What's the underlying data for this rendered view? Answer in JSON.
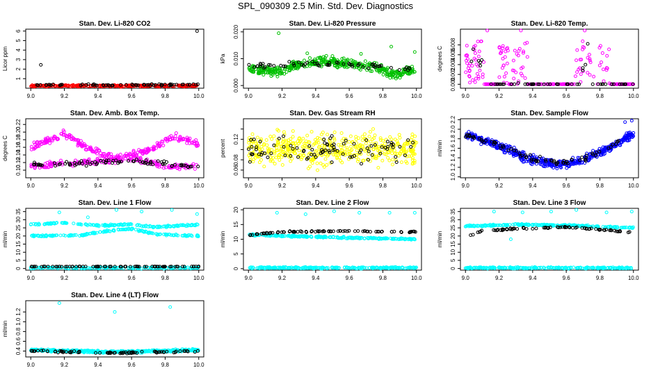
{
  "title": "SPL_090309  2.5 Min. Std. Dev. Diagnostics",
  "chart_data": [
    {
      "type": "scatter",
      "title": "Stan. Dev. Li-820 CO2",
      "ylabel": "Licor ppm",
      "xlim": [
        8.97,
        10.03
      ],
      "ylim": [
        0,
        6.2
      ],
      "xticks": [
        9.0,
        9.2,
        9.4,
        9.6,
        9.8,
        10.0
      ],
      "xtick_labels": [
        "9.0",
        "9.2",
        "9.4",
        "9.6",
        "9.8",
        "10.0"
      ],
      "yticks": [
        1,
        2,
        3,
        4,
        5,
        6
      ],
      "ytick_labels": [
        "1",
        "2",
        "3",
        "4",
        "5",
        "6"
      ],
      "color": "#ff0000",
      "black_overlay": true,
      "primary": {
        "kind": "band",
        "anchors": [
          [
            9.0,
            0.25
          ],
          [
            10.0,
            0.25
          ]
        ],
        "spread": 0.12,
        "n": 300
      },
      "black": {
        "kind": "band",
        "anchors": [
          [
            9.0,
            0.35
          ],
          [
            10.0,
            0.35
          ]
        ],
        "spread": 0.12,
        "n": 70
      },
      "outliers": [
        [
          9.06,
          2.45
        ],
        [
          9.99,
          6.0
        ]
      ],
      "outliers_black": true
    },
    {
      "type": "scatter",
      "title": "Stan. Dev. Li-820 Pressure",
      "ylabel": "kPa",
      "xlim": [
        8.97,
        10.03
      ],
      "ylim": [
        -0.001,
        0.021
      ],
      "xticks": [
        9.0,
        9.2,
        9.4,
        9.6,
        9.8,
        10.0
      ],
      "xtick_labels": [
        "9.0",
        "9.2",
        "9.4",
        "9.6",
        "9.8",
        "10.0"
      ],
      "yticks": [
        0.0,
        0.01,
        0.02
      ],
      "ytick_labels": [
        "0.000",
        "0.010",
        "0.020"
      ],
      "color": "#00c000",
      "black_overlay": true,
      "primary": {
        "kind": "band",
        "anchors": [
          [
            9.0,
            0.006
          ],
          [
            9.2,
            0.005
          ],
          [
            9.3,
            0.008
          ],
          [
            9.45,
            0.009
          ],
          [
            9.6,
            0.008
          ],
          [
            9.75,
            0.007
          ],
          [
            9.85,
            0.004
          ],
          [
            10.0,
            0.006
          ]
        ],
        "spread": 0.0025,
        "n": 420
      },
      "black": {
        "kind": "band",
        "anchors": [
          [
            9.0,
            0.007
          ],
          [
            9.3,
            0.008
          ],
          [
            9.6,
            0.008
          ],
          [
            10.0,
            0.006
          ]
        ],
        "spread": 0.0015,
        "n": 60
      },
      "outliers": [
        [
          9.18,
          0.0195
        ],
        [
          9.35,
          0.012
        ],
        [
          9.5,
          0.011
        ],
        [
          9.67,
          0.0118
        ],
        [
          9.85,
          0.0145
        ],
        [
          9.99,
          0.0125
        ]
      ],
      "outliers_black": false
    },
    {
      "type": "scatter",
      "title": "Stan. Dev. Li-820 Temp.",
      "ylabel": "degrees C",
      "xlim": [
        8.97,
        10.03
      ],
      "ylim": [
        -0.0008,
        0.0112
      ],
      "xticks": [
        9.0,
        9.2,
        9.4,
        9.6,
        9.8,
        10.0
      ],
      "xtick_labels": [
        "9.0",
        "9.2",
        "9.4",
        "9.6",
        "9.8",
        "10.0"
      ],
      "yticks": [
        0.0,
        0.002,
        0.004,
        0.006,
        0.008
      ],
      "ytick_labels": [
        "0.000",
        "0.002",
        "0.004",
        "0.006",
        "0.008"
      ],
      "color": "#ff00ff",
      "black_overlay": true,
      "primary": {
        "kind": "clusters",
        "floor": 0.0,
        "segments": [
          [
            9.0,
            9.11,
            0.008
          ],
          [
            9.2,
            9.26,
            0.007
          ],
          [
            9.28,
            9.37,
            0.008
          ],
          [
            9.65,
            9.77,
            0.008
          ],
          [
            9.79,
            9.86,
            0.007
          ]
        ],
        "n": 260
      },
      "black": {
        "kind": "clusters",
        "floor": 0.0,
        "segments": [
          [
            9.02,
            9.1,
            0.007
          ],
          [
            9.3,
            9.34,
            0.0085
          ],
          [
            9.69,
            9.75,
            0.0085
          ]
        ],
        "n": 60
      },
      "outliers": [
        [
          9.13,
          0.0112
        ],
        [
          9.33,
          0.0112
        ],
        [
          9.71,
          0.0112
        ]
      ],
      "outliers_black": false
    },
    {
      "type": "scatter",
      "title": "Stan. Dev. Amb. Box Temp.",
      "ylabel": "degrees C",
      "xlim": [
        8.97,
        10.03
      ],
      "ylim": [
        0.08,
        0.235
      ],
      "xticks": [
        9.0,
        9.2,
        9.4,
        9.6,
        9.8,
        10.0
      ],
      "xtick_labels": [
        "9.0",
        "9.2",
        "9.4",
        "9.6",
        "9.8",
        "10.0"
      ],
      "yticks": [
        0.1,
        0.12,
        0.14,
        0.16,
        0.18,
        0.2,
        0.22
      ],
      "ytick_labels": [
        "0.10",
        "0.12",
        "0.14",
        "0.16",
        "0.18",
        "0.20",
        "0.22"
      ],
      "color": "#ff00ff",
      "black_overlay": true,
      "primary": {
        "kind": "twoband",
        "anchorsA": [
          [
            9.0,
            0.16
          ],
          [
            9.2,
            0.195
          ],
          [
            9.35,
            0.155
          ],
          [
            9.5,
            0.13
          ],
          [
            9.7,
            0.15
          ],
          [
            9.85,
            0.19
          ],
          [
            10.0,
            0.17
          ]
        ],
        "anchorsB": [
          [
            9.0,
            0.11
          ],
          [
            9.3,
            0.12
          ],
          [
            9.6,
            0.13
          ],
          [
            9.8,
            0.11
          ],
          [
            10.0,
            0.11
          ]
        ],
        "spread": 0.012,
        "n": 460
      },
      "black": {
        "kind": "band",
        "anchors": [
          [
            9.0,
            0.115
          ],
          [
            9.4,
            0.12
          ],
          [
            9.6,
            0.125
          ],
          [
            10.0,
            0.11
          ]
        ],
        "spread": 0.01,
        "n": 80
      },
      "outliers": [],
      "outliers_black": false
    },
    {
      "type": "scatter",
      "title": "Stan. Dev. Gas Stream RH",
      "ylabel": "percent",
      "xlim": [
        8.97,
        10.03
      ],
      "ylim": [
        0.045,
        0.16
      ],
      "xticks": [
        9.0,
        9.2,
        9.4,
        9.6,
        9.8,
        10.0
      ],
      "xtick_labels": [
        "9.0",
        "9.2",
        "9.4",
        "9.6",
        "9.8",
        "10.0"
      ],
      "yticks": [
        0.06,
        0.08,
        0.1,
        0.12,
        0.14
      ],
      "ytick_labels": [
        "0.06",
        "0.08",
        "",
        "0.12",
        ""
      ],
      "color": "#ffff00",
      "black_overlay": true,
      "primary": {
        "kind": "band",
        "anchors": [
          [
            9.0,
            0.1
          ],
          [
            10.0,
            0.1
          ]
        ],
        "spread": 0.045,
        "n": 480
      },
      "black": {
        "kind": "band",
        "anchors": [
          [
            9.0,
            0.1
          ],
          [
            10.0,
            0.1
          ]
        ],
        "spread": 0.035,
        "n": 90
      },
      "outliers": [],
      "outliers_black": false
    },
    {
      "type": "scatter",
      "title": "Stan. Dev. Sample Flow",
      "ylabel": "ml/min",
      "xlim": [
        8.97,
        10.03
      ],
      "ylim": [
        0.98,
        2.22
      ],
      "xticks": [
        9.0,
        9.2,
        9.4,
        9.6,
        9.8,
        10.0
      ],
      "xtick_labels": [
        "9.0",
        "9.2",
        "9.4",
        "9.6",
        "9.8",
        "10.0"
      ],
      "yticks": [
        1.0,
        1.2,
        1.4,
        1.6,
        1.8,
        2.0,
        2.2
      ],
      "ytick_labels": [
        "1.0",
        "1.2",
        "1.4",
        "1.6",
        "1.8",
        "2.0",
        "2.2"
      ],
      "color": "#0000ff",
      "black_overlay": true,
      "primary": {
        "kind": "band",
        "anchors": [
          [
            9.0,
            1.9
          ],
          [
            9.2,
            1.65
          ],
          [
            9.4,
            1.35
          ],
          [
            9.55,
            1.25
          ],
          [
            9.7,
            1.35
          ],
          [
            9.85,
            1.6
          ],
          [
            10.0,
            1.9
          ]
        ],
        "spread": 0.13,
        "n": 460
      },
      "black": {
        "kind": "band",
        "anchors": [
          [
            9.0,
            1.9
          ],
          [
            9.2,
            1.65
          ],
          [
            9.4,
            1.38
          ],
          [
            9.55,
            1.28
          ],
          [
            9.7,
            1.38
          ],
          [
            9.85,
            1.6
          ],
          [
            10.0,
            1.95
          ]
        ],
        "spread": 0.1,
        "n": 80
      },
      "outliers": [
        [
          9.99,
          2.18
        ],
        [
          9.95,
          2.15
        ]
      ],
      "outliers_black": false
    },
    {
      "type": "scatter",
      "title": "Stan. Dev. Line 1 Flow",
      "ylabel": "ml/min",
      "xlim": [
        8.97,
        10.03
      ],
      "ylim": [
        -1,
        37
      ],
      "xticks": [
        9.0,
        9.2,
        9.4,
        9.6,
        9.8,
        10.0
      ],
      "xtick_labels": [
        "9.0",
        "9.2",
        "9.4",
        "9.6",
        "9.8",
        "10.0"
      ],
      "yticks": [
        0,
        5,
        10,
        15,
        20,
        25,
        30,
        35
      ],
      "ytick_labels": [
        "0",
        "5",
        "10",
        "15",
        "20",
        "25",
        "30",
        "35"
      ],
      "color": "#00ffff",
      "black_overlay": true,
      "primary": {
        "kind": "multiline",
        "lines": [
          [
            [
              9.0,
              27
            ],
            [
              9.2,
              28
            ],
            [
              9.4,
              26.5
            ],
            [
              9.6,
              27
            ],
            [
              9.75,
              25.5
            ],
            [
              10.0,
              27
            ]
          ],
          [
            [
              9.0,
              20
            ],
            [
              9.3,
              20.5
            ],
            [
              9.45,
              23
            ],
            [
              9.6,
              24.5
            ],
            [
              9.75,
              21
            ],
            [
              10.0,
              20
            ]
          ],
          [
            [
              9.0,
              0.4
            ],
            [
              10.0,
              0.4
            ]
          ]
        ],
        "spread": 0.7,
        "n": 520
      },
      "black": {
        "kind": "band",
        "anchors": [
          [
            9.02,
            1.2
          ],
          [
            10.0,
            1.2
          ]
        ],
        "spread": 0.15,
        "n": 80
      },
      "outliers": [
        [
          9.17,
          34.5
        ],
        [
          9.34,
          31.5
        ],
        [
          9.51,
          36
        ],
        [
          9.66,
          35
        ],
        [
          9.84,
          36
        ],
        [
          9.99,
          33.5
        ]
      ],
      "outliers_black": false
    },
    {
      "type": "scatter",
      "title": "Stan. Dev. Line 2 Flow",
      "ylabel": "ml/min",
      "xlim": [
        8.97,
        10.03
      ],
      "ylim": [
        -0.5,
        20.5
      ],
      "xticks": [
        9.0,
        9.2,
        9.4,
        9.6,
        9.8,
        10.0
      ],
      "xtick_labels": [
        "9.0",
        "9.2",
        "9.4",
        "9.6",
        "9.8",
        "10.0"
      ],
      "yticks": [
        0,
        5,
        10,
        15,
        20
      ],
      "ytick_labels": [
        "0",
        "5",
        "10",
        "15",
        "20"
      ],
      "color": "#00ffff",
      "black_overlay": true,
      "primary": {
        "kind": "multiline",
        "lines": [
          [
            [
              9.0,
              11.5
            ],
            [
              9.3,
              11
            ],
            [
              9.6,
              10.5
            ],
            [
              10.0,
              10
            ]
          ],
          [
            [
              9.0,
              0.3
            ],
            [
              10.0,
              0.3
            ]
          ]
        ],
        "spread": 0.4,
        "n": 480
      },
      "black": {
        "kind": "band",
        "anchors": [
          [
            9.02,
            11.5
          ],
          [
            9.2,
            12.5
          ],
          [
            9.6,
            12.8
          ],
          [
            10.0,
            12.5
          ]
        ],
        "spread": 0.3,
        "n": 80
      },
      "outliers": [
        [
          9.17,
          19
        ],
        [
          9.34,
          18.5
        ],
        [
          9.51,
          19.5
        ],
        [
          9.66,
          19
        ],
        [
          9.84,
          19
        ],
        [
          9.99,
          19
        ]
      ],
      "outliers_black": false
    },
    {
      "type": "scatter",
      "title": "Stan. Dev. Line 3 Flow",
      "ylabel": "ml/min",
      "xlim": [
        8.97,
        10.03
      ],
      "ylim": [
        -1,
        37
      ],
      "xticks": [
        9.0,
        9.2,
        9.4,
        9.6,
        9.8,
        10.0
      ],
      "xtick_labels": [
        "9.0",
        "9.2",
        "9.4",
        "9.6",
        "9.8",
        "10.0"
      ],
      "yticks": [
        0,
        5,
        10,
        15,
        20,
        25,
        30,
        35
      ],
      "ytick_labels": [
        "0",
        "5",
        "10",
        "15",
        "20",
        "25",
        "30",
        "35"
      ],
      "color": "#00ffff",
      "black_overlay": true,
      "primary": {
        "kind": "multiline",
        "lines": [
          [
            [
              9.0,
              26
            ],
            [
              9.3,
              27
            ],
            [
              9.6,
              26.5
            ],
            [
              10.0,
              25
            ]
          ],
          [
            [
              9.0,
              0.4
            ],
            [
              10.0,
              0.4
            ]
          ]
        ],
        "spread": 0.7,
        "n": 480
      },
      "black": {
        "kind": "band",
        "anchors": [
          [
            9.02,
            20
          ],
          [
            9.1,
            23
          ],
          [
            9.3,
            24.5
          ],
          [
            9.6,
            25.5
          ],
          [
            9.8,
            24
          ],
          [
            10.0,
            22
          ]
        ],
        "spread": 0.6,
        "n": 80
      },
      "outliers": [
        [
          9.17,
          35
        ],
        [
          9.34,
          34.5
        ],
        [
          9.51,
          35
        ],
        [
          9.66,
          36
        ],
        [
          9.84,
          34.5
        ],
        [
          9.99,
          35
        ],
        [
          9.27,
          18
        ]
      ],
      "outliers_black": false
    },
    {
      "type": "scatter",
      "title": "Stan. Dev. Line 4 (LT) Flow",
      "ylabel": "ml/min",
      "xlim": [
        8.97,
        10.03
      ],
      "ylim": [
        0.28,
        1.43
      ],
      "xticks": [
        9.0,
        9.2,
        9.4,
        9.6,
        9.8,
        10.0
      ],
      "xtick_labels": [
        "9.0",
        "9.2",
        "9.4",
        "9.6",
        "9.8",
        "10.0"
      ],
      "yticks": [
        0.4,
        0.6,
        0.8,
        1.0,
        1.2
      ],
      "ytick_labels": [
        "0.4",
        "0.6",
        "0.8",
        "1.0",
        "1.2"
      ],
      "color": "#00ffff",
      "black_overlay": true,
      "primary": {
        "kind": "band",
        "anchors": [
          [
            9.0,
            0.42
          ],
          [
            9.5,
            0.38
          ],
          [
            10.0,
            0.42
          ]
        ],
        "spread": 0.035,
        "n": 420
      },
      "black": {
        "kind": "band",
        "anchors": [
          [
            9.0,
            0.4
          ],
          [
            9.5,
            0.36
          ],
          [
            10.0,
            0.4
          ]
        ],
        "spread": 0.03,
        "n": 80
      },
      "outliers": [
        [
          9.17,
          1.38
        ],
        [
          9.5,
          1.2
        ],
        [
          9.83,
          1.3
        ]
      ],
      "outliers_black": false
    }
  ]
}
